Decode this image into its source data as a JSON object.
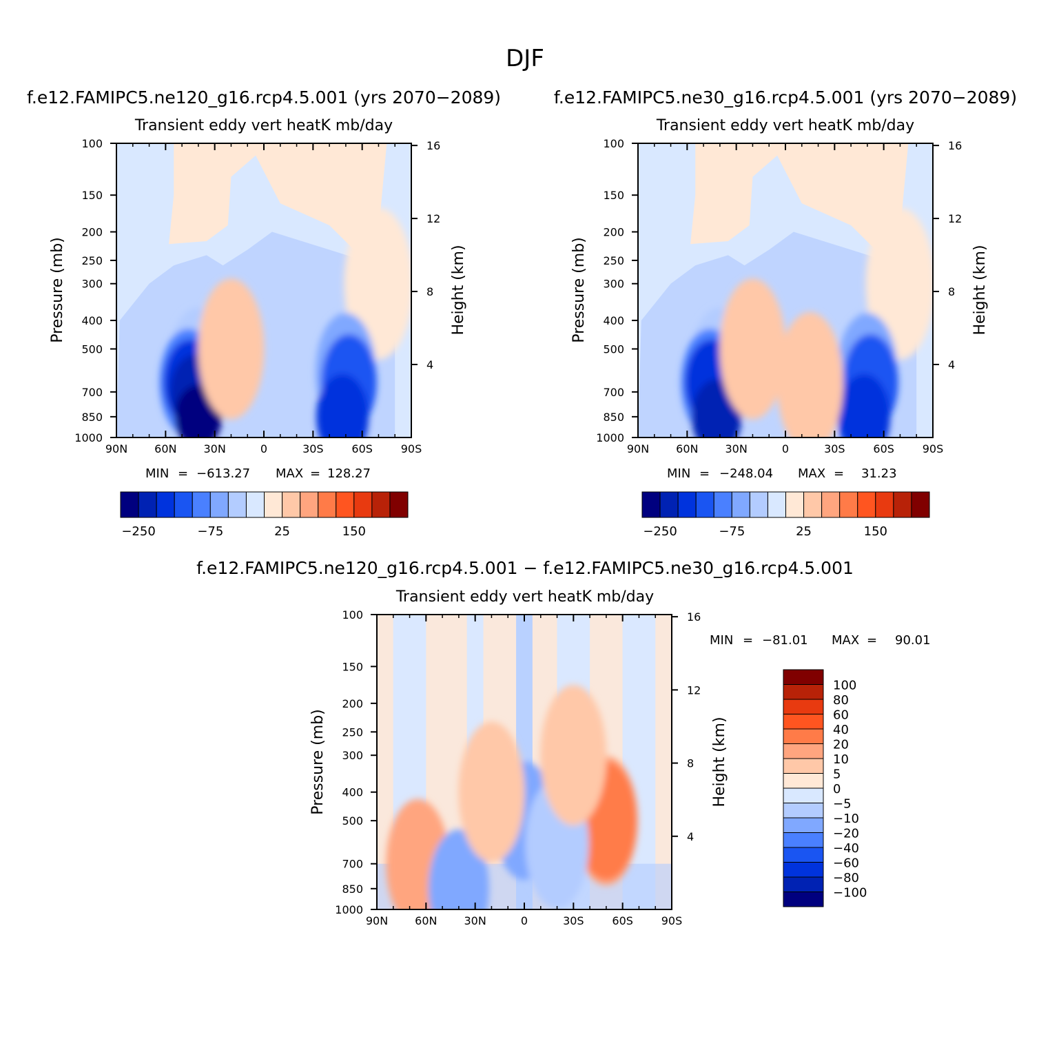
{
  "figure": {
    "title": "DJF"
  },
  "colors": {
    "neg_scale": [
      "#00007F",
      "#0022B3",
      "#0033DD",
      "#1A55F2",
      "#4A80FF",
      "#80A8FF",
      "#B3CCFF",
      "#D9E8FF"
    ],
    "pos_scale": [
      "#FFE8D6",
      "#FFC8A8",
      "#FFA57F",
      "#FF7B48",
      "#FF5520",
      "#E83A10",
      "#B82208",
      "#800000"
    ]
  },
  "chart_data": [
    {
      "type": "heatmap",
      "case_title": "f.e12.FAMIPC5.ne120_g16.rcp4.5.001 (yrs 2070−2089)",
      "variable_title": "Transient eddy vert heatK mb/day",
      "xlabel": "",
      "ylabel": "Pressure (mb)",
      "ylabel_right": "Height (km)",
      "x_ticks": [
        "90N",
        "60N",
        "30N",
        "0",
        "30S",
        "60S",
        "90S"
      ],
      "y_ticks": [
        "100",
        "150",
        "200",
        "250",
        "300",
        "400",
        "500",
        "700",
        "850",
        "1000"
      ],
      "y_ticks_right": [
        "16",
        "12",
        "8",
        "4"
      ],
      "ylim": [
        1000,
        100
      ],
      "min_label": "MIN",
      "min_value": "−613.27",
      "max_label": "MAX",
      "max_value": "128.27",
      "colorbar_labels": [
        "−250",
        "−75",
        "25",
        "150"
      ],
      "blobs": [
        {
          "lat": -70,
          "p": 300,
          "level": 0
        },
        {
          "lat": 40,
          "p": 600,
          "level": -2
        },
        {
          "lat": 46,
          "p": 650,
          "level": -4
        },
        {
          "lat": 45,
          "p": 650,
          "level": -6
        },
        {
          "lat": 42,
          "p": 700,
          "level": -7
        },
        {
          "lat": 40,
          "p": 850,
          "level": -8
        },
        {
          "lat": -50,
          "p": 600,
          "level": -3
        },
        {
          "lat": -52,
          "p": 650,
          "level": -5
        },
        {
          "lat": -48,
          "p": 850,
          "level": -6
        },
        {
          "lat": 20,
          "p": 500,
          "level": 1
        }
      ]
    },
    {
      "type": "heatmap",
      "case_title": "f.e12.FAMIPC5.ne30_g16.rcp4.5.001 (yrs 2070−2089)",
      "variable_title": "Transient eddy vert heatK mb/day",
      "xlabel": "",
      "ylabel": "Pressure (mb)",
      "ylabel_right": "Height (km)",
      "x_ticks": [
        "90N",
        "60N",
        "30N",
        "0",
        "30S",
        "60S",
        "90S"
      ],
      "y_ticks": [
        "100",
        "150",
        "200",
        "250",
        "300",
        "400",
        "500",
        "700",
        "850",
        "1000"
      ],
      "y_ticks_right": [
        "16",
        "12",
        "8",
        "4"
      ],
      "ylim": [
        1000,
        100
      ],
      "min_label": "MIN",
      "min_value": "−248.04",
      "max_label": "MAX",
      "max_value": "31.23",
      "colorbar_labels": [
        "−250",
        "−75",
        "25",
        "150"
      ],
      "blobs": [
        {
          "lat": -70,
          "p": 300,
          "level": 0
        },
        {
          "lat": 40,
          "p": 600,
          "level": -2
        },
        {
          "lat": 46,
          "p": 650,
          "level": -4
        },
        {
          "lat": 45,
          "p": 650,
          "level": -6
        },
        {
          "lat": 42,
          "p": 850,
          "level": -7
        },
        {
          "lat": -50,
          "p": 600,
          "level": -3
        },
        {
          "lat": -52,
          "p": 650,
          "level": -5
        },
        {
          "lat": -48,
          "p": 850,
          "level": -6
        },
        {
          "lat": 20,
          "p": 500,
          "level": 1
        },
        {
          "lat": -15,
          "p": 650,
          "level": 1
        }
      ]
    },
    {
      "type": "heatmap",
      "case_title": "f.e12.FAMIPC5.ne120_g16.rcp4.5.001 − f.e12.FAMIPC5.ne30_g16.rcp4.5.001",
      "variable_title": "Transient eddy vert heatK mb/day",
      "xlabel": "",
      "ylabel": "Pressure (mb)",
      "ylabel_right": "Height (km)",
      "x_ticks": [
        "90N",
        "60N",
        "30N",
        "0",
        "30S",
        "60S",
        "90S"
      ],
      "y_ticks": [
        "100",
        "150",
        "200",
        "250",
        "300",
        "400",
        "500",
        "700",
        "850",
        "1000"
      ],
      "y_ticks_right": [
        "16",
        "12",
        "8",
        "4"
      ],
      "ylim": [
        1000,
        100
      ],
      "min_label": "MIN",
      "min_value": "−81.01",
      "max_label": "MAX",
      "max_value": "90.01",
      "colorbar_labels": [
        "100",
        "80",
        "60",
        "40",
        "20",
        "10",
        "5",
        "0",
        "−5",
        "−10",
        "−20",
        "−40",
        "−60",
        "−80",
        "−100"
      ],
      "blobs": [
        {
          "lat": 65,
          "p": 700,
          "level": 2
        },
        {
          "lat": 0,
          "p": 500,
          "level": -3
        },
        {
          "lat": -50,
          "p": 500,
          "level": 2
        },
        {
          "lat": -50,
          "p": 500,
          "level": 3
        },
        {
          "lat": 40,
          "p": 850,
          "level": -3
        },
        {
          "lat": -20,
          "p": 600,
          "level": -2
        },
        {
          "lat": 20,
          "p": 400,
          "level": 1
        },
        {
          "lat": -30,
          "p": 300,
          "level": 1
        }
      ]
    }
  ]
}
